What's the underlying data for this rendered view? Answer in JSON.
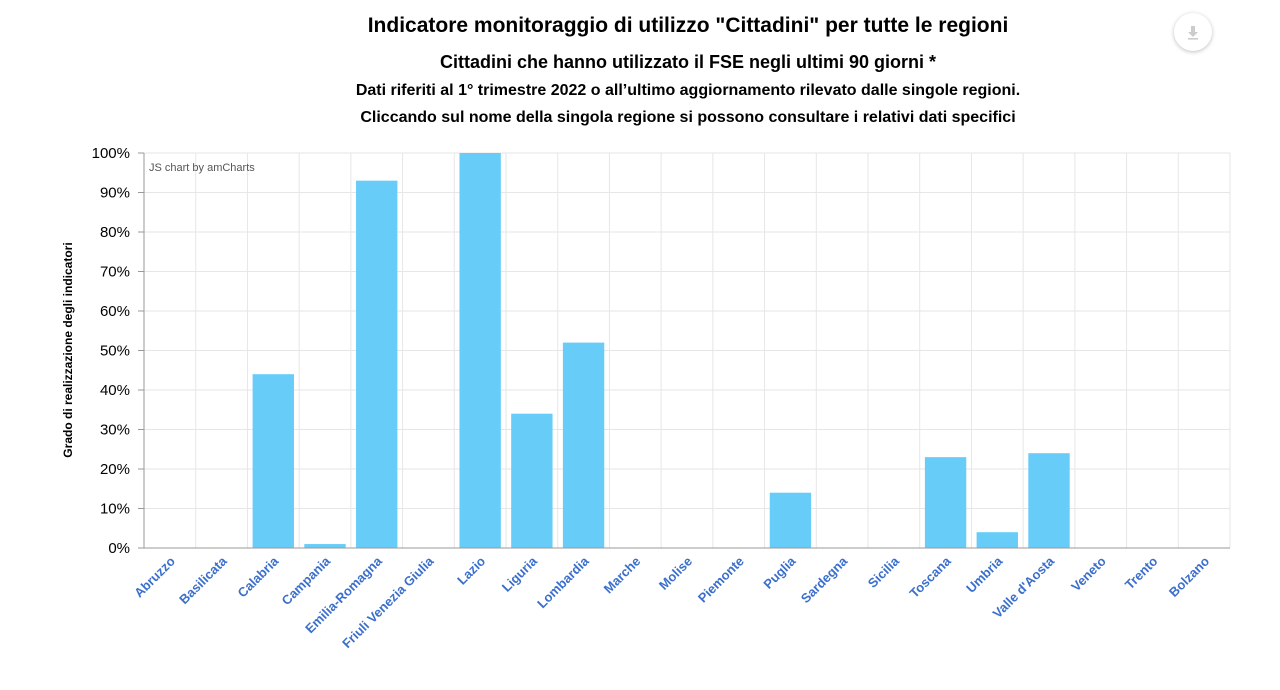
{
  "header": {
    "title": "Indicatore monitoraggio di utilizzo \"Cittadini\" per tutte le regioni",
    "subtitle": "Cittadini che hanno utilizzato il FSE negli ultimi 90 giorni *",
    "note1": "Dati riferiti al 1° trimestre 2022 o all’ultimo aggiornamento rilevato dalle singole regioni.",
    "note2": "Cliccando sul nome della singola regione si possono consultare i relativi dati specifici"
  },
  "toolbar": {
    "download_icon": "download-icon"
  },
  "credit": "JS chart by amCharts",
  "chart_data": {
    "type": "bar",
    "ylabel": "Grado di realizzazione degli indicatori",
    "ylim": [
      0,
      100
    ],
    "yticks": [
      "0%",
      "10%",
      "20%",
      "30%",
      "40%",
      "50%",
      "60%",
      "70%",
      "80%",
      "90%",
      "100%"
    ],
    "grid": true,
    "bar_color": "#67cdf8",
    "label_color": "#3a6fcc",
    "categories": [
      "Abruzzo",
      "Basilicata",
      "Calabria",
      "Campania",
      "Emilia-Romagna",
      "Friuli Venezia Giulia",
      "Lazio",
      "Liguria",
      "Lombardia",
      "Marche",
      "Molise",
      "Piemonte",
      "Puglia",
      "Sardegna",
      "Sicilia",
      "Toscana",
      "Umbria",
      "Valle d'Aosta",
      "Veneto",
      "Trento",
      "Bolzano"
    ],
    "values": [
      0,
      0,
      44,
      1,
      93,
      0,
      100,
      34,
      52,
      0,
      0,
      0,
      14,
      0,
      0,
      23,
      4,
      24,
      0,
      0,
      0
    ]
  }
}
